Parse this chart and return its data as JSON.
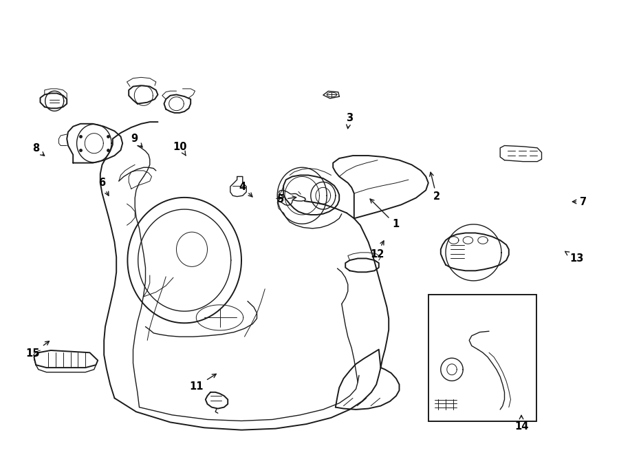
{
  "background_color": "#ffffff",
  "line_color": "#1a1a1a",
  "fig_width": 9.0,
  "fig_height": 6.61,
  "label_positions": {
    "1": [
      0.618,
      0.538,
      0.582,
      0.505
    ],
    "2": [
      0.658,
      0.468,
      0.648,
      0.435
    ],
    "3": [
      0.538,
      0.148,
      0.542,
      0.178
    ],
    "4": [
      0.378,
      0.318,
      0.385,
      0.348
    ],
    "5": [
      0.445,
      0.428,
      0.468,
      0.432
    ],
    "6": [
      0.168,
      0.298,
      0.178,
      0.335
    ],
    "7": [
      0.908,
      0.368,
      0.875,
      0.368
    ],
    "8": [
      0.062,
      0.198,
      0.082,
      0.215
    ],
    "9": [
      0.225,
      0.162,
      0.232,
      0.188
    ],
    "10": [
      0.302,
      0.198,
      0.285,
      0.215
    ],
    "11": [
      0.312,
      0.878,
      0.342,
      0.858
    ],
    "12": [
      0.588,
      0.548,
      0.578,
      0.572
    ],
    "13": [
      0.875,
      0.548,
      0.842,
      0.548
    ],
    "14": [
      0.812,
      0.948,
      0.778,
      0.918
    ],
    "15": [
      0.062,
      0.808,
      0.092,
      0.788
    ]
  }
}
